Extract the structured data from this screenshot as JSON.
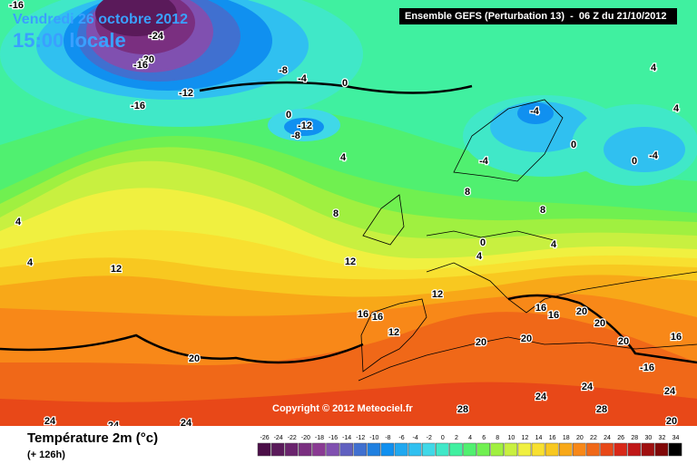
{
  "header": {
    "date": "Vendredi 26 octobre 2012",
    "time": "15:00 locale",
    "model": "Ensemble GEFS (Perturbation 13)  -  06 Z du 21/10/2012",
    "copyright": "Copyright © 2012 Meteociel.fr"
  },
  "legend": {
    "title": "Température 2m (°c)",
    "lead": "(+ 126h)",
    "scale": {
      "ticks": [
        -26,
        -24,
        -22,
        -20,
        -18,
        -16,
        -14,
        -12,
        -10,
        -8,
        -6,
        -4,
        -2,
        0,
        2,
        4,
        6,
        8,
        10,
        12,
        14,
        16,
        18,
        20,
        22,
        24,
        26,
        28,
        30,
        32,
        34
      ],
      "colors": [
        "#4b0f48",
        "#5a1a5a",
        "#6a246d",
        "#7a2f80",
        "#8a3a93",
        "#8050b0",
        "#6060c0",
        "#4070d0",
        "#2080e0",
        "#1090f0",
        "#20a8f0",
        "#30c0f0",
        "#40d8e8",
        "#40e8c8",
        "#40f0a0",
        "#50f070",
        "#70f050",
        "#a0f040",
        "#c8f040",
        "#f0f040",
        "#f8e030",
        "#f8c820",
        "#f8a818",
        "#f88818",
        "#f06818",
        "#e84818",
        "#d82818",
        "#c01818",
        "#a01010",
        "#800808",
        "#000000"
      ]
    }
  },
  "contour_labels": [
    "-16",
    "-24",
    "-20",
    "-16",
    "-12",
    "-16",
    "-8",
    "-4",
    "0",
    "4",
    "4",
    "0",
    "-12",
    "-8",
    "4",
    "8",
    "12",
    "12",
    "4",
    "4",
    "12",
    "16",
    "16",
    "12",
    "20",
    "20",
    "20",
    "16",
    "16",
    "20",
    "20",
    "20",
    "16",
    "-16",
    "24",
    "24",
    "24",
    "28",
    "28",
    "24",
    "24",
    "24",
    "20",
    "4",
    "0",
    "8",
    "8",
    "4",
    "0",
    "-4",
    "-4",
    "-4",
    "0"
  ]
}
